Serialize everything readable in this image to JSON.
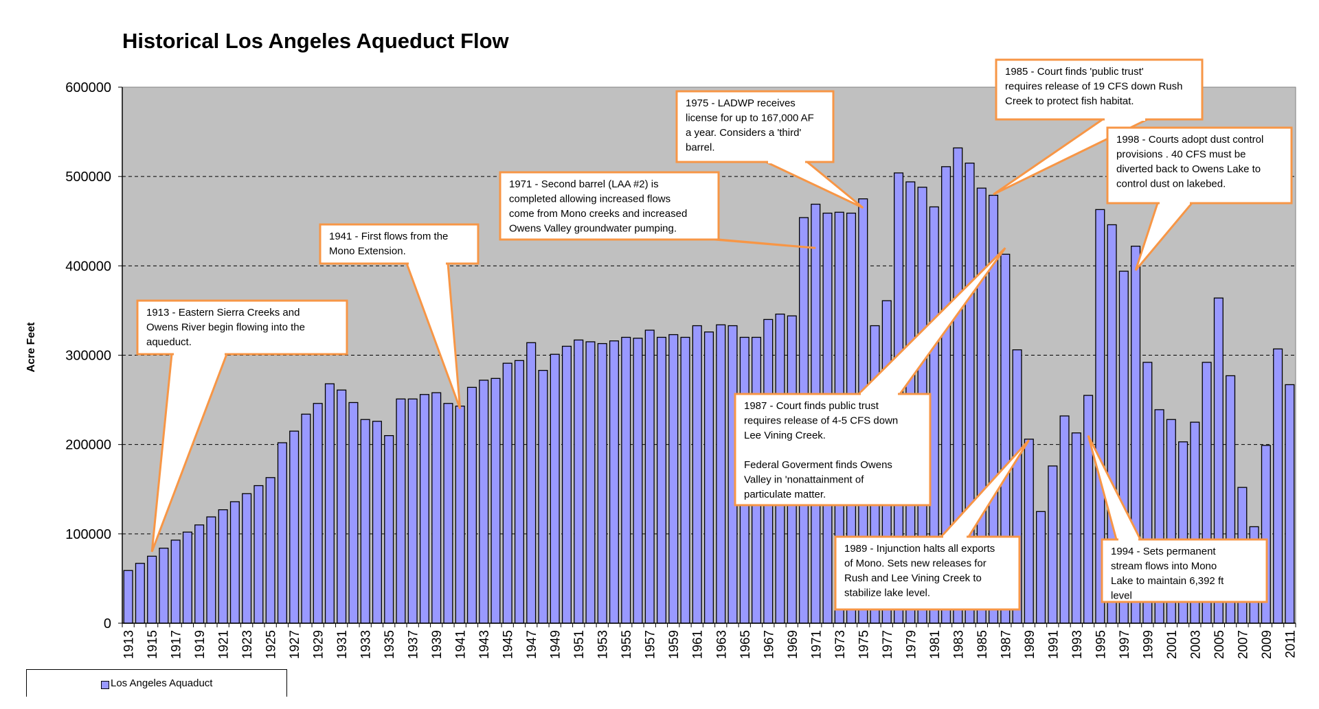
{
  "chart_data": {
    "type": "bar",
    "title": "Historical Los Angeles Aqueduct Flow",
    "ylabel": "Acre Feet",
    "ylim": [
      0,
      600000
    ],
    "yticks": [
      "0",
      "100000",
      "200000",
      "300000",
      "400000",
      "500000",
      "600000"
    ],
    "xtick_labels": [
      "1913",
      "1915",
      "1917",
      "1919",
      "1921",
      "1923",
      "1925",
      "1927",
      "1929",
      "1931",
      "1933",
      "1935",
      "1937",
      "1939",
      "1941",
      "1943",
      "1945",
      "1947",
      "1949",
      "1951",
      "1953",
      "1955",
      "1957",
      "1959",
      "1961",
      "1963",
      "1965",
      "1967",
      "1969",
      "1971",
      "1973",
      "1975",
      "1977",
      "1979",
      "1981",
      "1983",
      "1985",
      "1987",
      "1989",
      "1991",
      "1993",
      "1995",
      "1997",
      "1999",
      "2001",
      "2003",
      "2005",
      "2007",
      "2009",
      "2011"
    ],
    "grid": "horizontal dashed",
    "plot_background": "#c0c0c0",
    "bar_color": "#9999ff",
    "legend_position": "bottom-left",
    "series": [
      {
        "name": "Los Angeles Aquaduct",
        "x": [
          1913,
          1914,
          1915,
          1916,
          1917,
          1918,
          1919,
          1920,
          1921,
          1922,
          1923,
          1924,
          1925,
          1926,
          1927,
          1928,
          1929,
          1930,
          1931,
          1932,
          1933,
          1934,
          1935,
          1936,
          1937,
          1938,
          1939,
          1940,
          1941,
          1942,
          1943,
          1944,
          1945,
          1946,
          1947,
          1948,
          1949,
          1950,
          1951,
          1952,
          1953,
          1954,
          1955,
          1956,
          1957,
          1958,
          1959,
          1960,
          1961,
          1962,
          1963,
          1964,
          1965,
          1966,
          1967,
          1968,
          1969,
          1970,
          1971,
          1972,
          1973,
          1974,
          1975,
          1976,
          1977,
          1978,
          1979,
          1980,
          1981,
          1982,
          1983,
          1984,
          1985,
          1986,
          1987,
          1988,
          1989,
          1990,
          1991,
          1992,
          1993,
          1994,
          1995,
          1996,
          1997,
          1998,
          1999,
          2000,
          2001,
          2002,
          2003,
          2004,
          2005,
          2006,
          2007,
          2008,
          2009,
          2010,
          2011
        ],
        "values": [
          59000,
          67000,
          75000,
          84000,
          93000,
          102000,
          110000,
          119000,
          127000,
          136000,
          145000,
          154000,
          163000,
          202000,
          215000,
          234000,
          246000,
          268000,
          261000,
          247000,
          228000,
          226000,
          210000,
          251000,
          251000,
          256000,
          258000,
          246000,
          243000,
          264000,
          272000,
          274000,
          291000,
          294000,
          314000,
          283000,
          301000,
          310000,
          317000,
          315000,
          313000,
          316000,
          320000,
          319000,
          328000,
          320000,
          323000,
          320000,
          333000,
          326000,
          334000,
          333000,
          320000,
          320000,
          340000,
          346000,
          344000,
          454000,
          469000,
          459000,
          460000,
          459000,
          475000,
          333000,
          361000,
          504000,
          494000,
          488000,
          466000,
          511000,
          532000,
          515000,
          487000,
          479000,
          413000,
          306000,
          206000,
          125000,
          176000,
          232000,
          213000,
          255000,
          463000,
          446000,
          394000,
          422000,
          292000,
          239000,
          228000,
          203000,
          225000,
          292000,
          364000,
          277000,
          152000,
          108000,
          199000,
          307000,
          267000
        ]
      }
    ],
    "annotations": [
      {
        "lines": [
          "1913 - Eastern Sierra Creeks and",
          "Owens River begin flowing into the",
          "aqueduct."
        ]
      },
      {
        "lines": [
          "1941 - First flows from the",
          "Mono Extension."
        ]
      },
      {
        "lines": [
          "1971 - Second barrel (LAA #2) is",
          "completed allowing  increased flows",
          "come from Mono creeks and increased",
          "Owens Valley groundwater pumping."
        ]
      },
      {
        "lines": [
          "1975 - LADWP receives",
          "license for up to 167,000 AF",
          "a year.  Considers a 'third'",
          "barrel."
        ]
      },
      {
        "lines": [
          "1985 - Court finds 'public trust'",
          "requires release of 19 CFS down Rush",
          "Creek  to protect fish habitat."
        ]
      },
      {
        "lines": [
          "1998 -  Courts adopt dust control",
          "provisions . 40 CFS must be",
          "diverted back to Owens Lake to",
          "control dust on lakebed."
        ]
      },
      {
        "lines": [
          "1987 - Court finds public trust",
          "requires release of  4-5 CFS  down",
          "Lee Vining Creek.",
          "",
          "Federal Goverment finds Owens",
          "Valley  in 'nonattainment of",
          "particulate matter."
        ]
      },
      {
        "lines": [
          "1989 - Injunction halts all exports",
          "of Mono.  Sets new releases  for",
          "Rush and Lee Vining Creek to",
          "stabilize lake level."
        ]
      },
      {
        "lines": [
          "1994 - Sets permanent",
          "stream flows into Mono",
          "Lake to maintain 6,392 ft",
          "level"
        ]
      }
    ]
  }
}
